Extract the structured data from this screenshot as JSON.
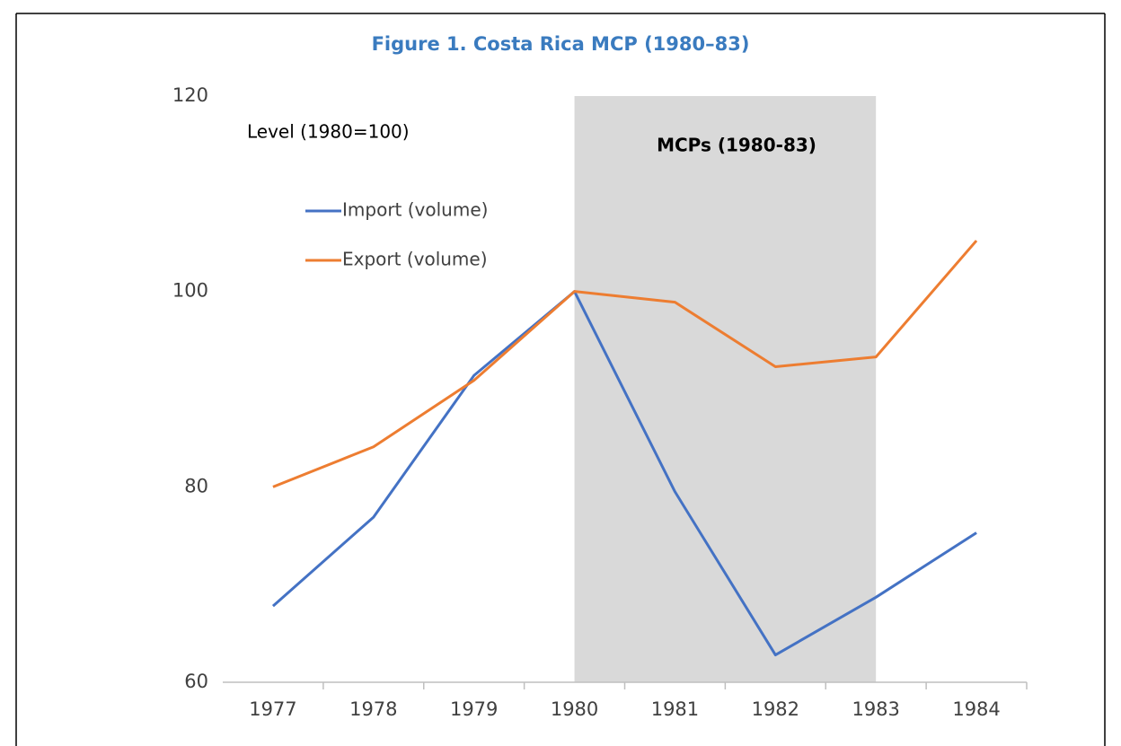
{
  "chart_data": {
    "type": "line",
    "title": "Figure 1. Costa Rica MCP (1980–83)",
    "annotations": [
      "Level (1980=100)",
      "MCPs (1980-83)"
    ],
    "categories": [
      "1977",
      "1978",
      "1979",
      "1980",
      "1981",
      "1982",
      "1983",
      "1984"
    ],
    "series": [
      {
        "name": "Import (volume)",
        "color": "#4472c4",
        "values": [
          67.8,
          76.9,
          91.4,
          100,
          79.5,
          62.8,
          68.7,
          75.3
        ]
      },
      {
        "name": "Export (volume)",
        "color": "#ed7d31",
        "values": [
          80.0,
          84.1,
          90.9,
          100,
          98.9,
          92.3,
          93.3,
          105.2
        ]
      }
    ],
    "shaded_span": [
      "1980",
      "1983"
    ],
    "shade_color": "#d9d9d9",
    "ylim": [
      60,
      120
    ],
    "yticks": [
      60,
      80,
      100,
      120
    ],
    "grid": false
  }
}
